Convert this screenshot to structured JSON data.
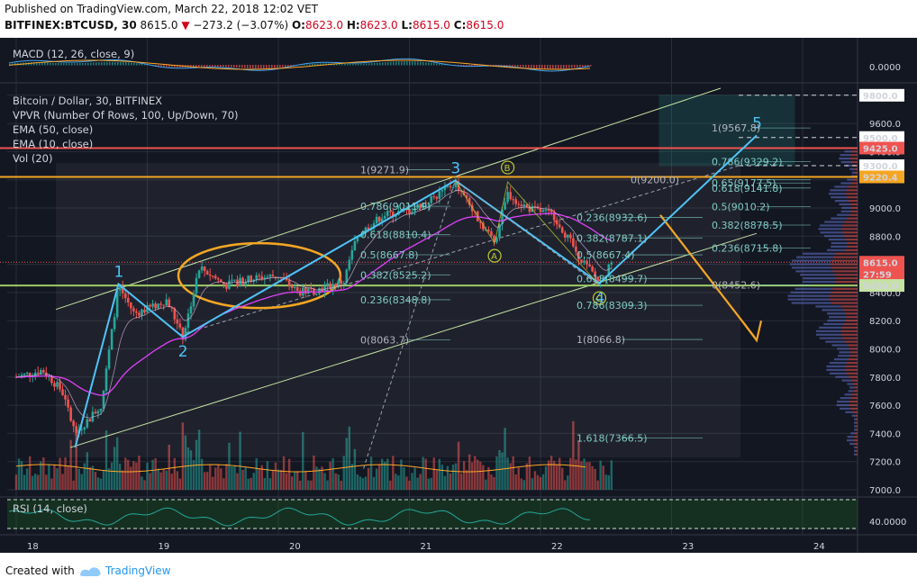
{
  "header": {
    "published": "Published on TradingView.com, March 22, 2018 12:02 VET",
    "symbol": "BITFINEX:BTCUSD, 30",
    "last": "8615.0",
    "arrow": "▼",
    "change": "−273.2 (−3.07%)",
    "o_label": "O:",
    "o_value": "8623.0",
    "h_label": "H:",
    "h_value": "8623.0",
    "l_label": "L:",
    "l_value": "8615.0",
    "c_label": "C:",
    "c_value": "8615.0"
  },
  "footer": {
    "created": "Created with",
    "brand": "TradingView"
  },
  "legend": {
    "macd": "MACD (12, 26, close, 9)",
    "title": "Bitcoin / Dollar, 30, BITFINEX",
    "vpvr": "VPVR (Number Of Rows, 100, Up/Down, 70)",
    "ema50": "EMA (50, close)",
    "ema10": "EMA (10, close)",
    "vol": "Vol (20)",
    "rsi": "RSI (14, close)"
  },
  "colors": {
    "background": "#131722",
    "up": "#26a69a",
    "down": "#ef5350",
    "grid": "#2a2e39",
    "channel": "#c5e1a5",
    "wave": "#4fc3f7",
    "ema50": "#e040fb",
    "ema10": "#ffa726",
    "orange": "#f5a623",
    "fib": "#80cbc4",
    "support": "#9ccc65",
    "resistance_red": "#ef5350"
  },
  "chart_data": {
    "type": "candlestick",
    "symbol": "BITFINEX:BTCUSD",
    "timeframe": "30",
    "x_ticks": [
      "18",
      "19",
      "20",
      "21",
      "22",
      "23",
      "24"
    ],
    "y_ticks": [
      7000,
      7200,
      7400,
      7600,
      7800,
      8000,
      8200,
      8400,
      8600,
      8800,
      9000,
      9200,
      9400,
      9600,
      9800
    ],
    "y_range": [
      6980,
      9880
    ],
    "macd_tick": "0.0000",
    "rsi_tick": "40.0000",
    "price_labels": [
      {
        "text": "9800.0",
        "value": 9800,
        "style": "white"
      },
      {
        "text": "9500.0",
        "value": 9500,
        "style": "white"
      },
      {
        "text": "9425.0",
        "value": 9425,
        "style": "red"
      },
      {
        "text": "9300.0",
        "value": 9300,
        "style": "white"
      },
      {
        "text": "9220.4",
        "value": 9220.4,
        "style": "orange"
      },
      {
        "text": "8615.0",
        "value": 8615,
        "style": "red"
      },
      {
        "text": "27:59",
        "value": 8530,
        "style": "red"
      },
      {
        "text": "8450.0",
        "value": 8450,
        "style": "green"
      }
    ],
    "waves": [
      {
        "label": "1",
        "time": 18.78,
        "price": 8460
      },
      {
        "label": "2",
        "time": 19.27,
        "price": 8085
      },
      {
        "label": "3",
        "time": 21.35,
        "price": 9195
      },
      {
        "label": "4",
        "time": 22.45,
        "price": 8465
      },
      {
        "label": "5",
        "time": 23.65,
        "price": 9515
      }
    ],
    "abc": [
      {
        "label": "A",
        "time": 21.65,
        "price": 8750
      },
      {
        "label": "B",
        "time": 21.75,
        "price": 9185
      },
      {
        "label": "C",
        "time": 22.45,
        "price": 8450
      }
    ],
    "fib_sets": [
      {
        "name": "left",
        "color": "#80cbc4",
        "levels": [
          {
            "label": "1(9271.9)",
            "price": 9271.9
          },
          {
            "label": "0.786(9011.9)",
            "price": 9011.9
          },
          {
            "label": "0.618(8810.4)",
            "price": 8810.4
          },
          {
            "label": "0.5(8667.8)",
            "price": 8667.8
          },
          {
            "label": "0.382(8525.2)",
            "price": 8525.2
          },
          {
            "label": "0.236(8348.8)",
            "price": 8348.8
          },
          {
            "label": "0(8063.7)",
            "price": 8063.7
          }
        ]
      },
      {
        "name": "middle",
        "color": "#80cbc4",
        "levels": [
          {
            "label": "0.236(8932.6)",
            "price": 8932.6
          },
          {
            "label": "0.382(8787.1)",
            "price": 8787.1
          },
          {
            "label": "0.5(8667.4)",
            "price": 8667.4
          },
          {
            "label": "0.618(8499.7)",
            "price": 8499.7
          },
          {
            "label": "0.786(8309.3)",
            "price": 8309.3
          },
          {
            "label": "1(8066.8)",
            "price": 8066.8
          },
          {
            "label": "1.618(7366.5)",
            "price": 7366.5
          }
        ]
      },
      {
        "name": "right",
        "color": "#80cbc4",
        "levels": [
          {
            "label": "1(9567.8)",
            "price": 9567.8
          },
          {
            "label": "0.786(9329.2)",
            "price": 9329.2
          },
          {
            "label": "0.65(9177.5)",
            "price": 9177.5
          },
          {
            "label": "0.618(9141.8)",
            "price": 9141.8
          },
          {
            "label": "0.5(9010.2)",
            "price": 9010.2
          },
          {
            "label": "0.382(8878.5)",
            "price": 8878.5
          },
          {
            "label": "0.236(8715.8)",
            "price": 8715.8
          },
          {
            "label": "0(8452.6)",
            "price": 8452.6
          },
          {
            "label": "0(9200.0)",
            "price": 9200.0
          }
        ]
      }
    ],
    "price_series_approx": [
      {
        "t": 18.0,
        "p": 7800
      },
      {
        "t": 18.2,
        "p": 7850
      },
      {
        "t": 18.35,
        "p": 7700
      },
      {
        "t": 18.45,
        "p": 7400
      },
      {
        "t": 18.55,
        "p": 7500
      },
      {
        "t": 18.65,
        "p": 7600
      },
      {
        "t": 18.78,
        "p": 8450
      },
      {
        "t": 18.9,
        "p": 8250
      },
      {
        "t": 19.05,
        "p": 8300
      },
      {
        "t": 19.15,
        "p": 8350
      },
      {
        "t": 19.27,
        "p": 8080
      },
      {
        "t": 19.4,
        "p": 8580
      },
      {
        "t": 19.6,
        "p": 8450
      },
      {
        "t": 19.8,
        "p": 8500
      },
      {
        "t": 20.0,
        "p": 8520
      },
      {
        "t": 20.15,
        "p": 8400
      },
      {
        "t": 20.3,
        "p": 8420
      },
      {
        "t": 20.5,
        "p": 8480
      },
      {
        "t": 20.6,
        "p": 8800
      },
      {
        "t": 20.8,
        "p": 8950
      },
      {
        "t": 21.0,
        "p": 8980
      },
      {
        "t": 21.2,
        "p": 9080
      },
      {
        "t": 21.35,
        "p": 9180
      },
      {
        "t": 21.5,
        "p": 8950
      },
      {
        "t": 21.65,
        "p": 8760
      },
      {
        "t": 21.75,
        "p": 9100
      },
      {
        "t": 21.9,
        "p": 9000
      },
      {
        "t": 22.1,
        "p": 8950
      },
      {
        "t": 22.3,
        "p": 8650
      },
      {
        "t": 22.45,
        "p": 8470
      },
      {
        "t": 22.55,
        "p": 8615
      }
    ]
  }
}
